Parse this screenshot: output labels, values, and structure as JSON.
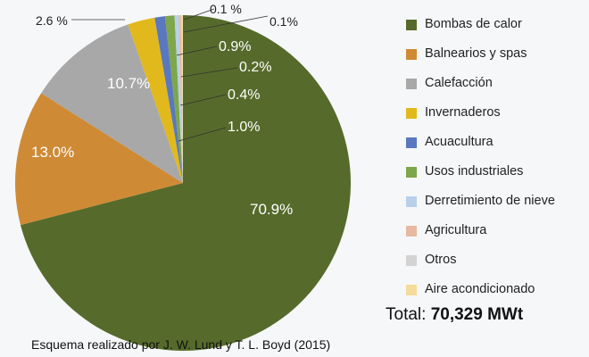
{
  "chart_data": {
    "type": "pie",
    "slices": [
      {
        "label": "Bombas de calor",
        "value": 70.9,
        "display": "70.9%",
        "color": "#566b2b"
      },
      {
        "label": "Balnearios y spas",
        "value": 13.0,
        "display": "13.0%",
        "color": "#cf8a35"
      },
      {
        "label": "Calefacción",
        "value": 10.7,
        "display": "10.7%",
        "color": "#a8a8a8"
      },
      {
        "label": "Invernaderos",
        "value": 2.6,
        "display": "2.6 %",
        "color": "#e2b91c"
      },
      {
        "label": "Acuacultura",
        "value": 1.0,
        "display": "1.0%",
        "color": "#5a78bf"
      },
      {
        "label": "Usos industriales",
        "value": 0.9,
        "display": "0.9%",
        "color": "#7ea64a"
      },
      {
        "label": "Derretimiento de nieve",
        "value": 0.4,
        "display": "0.4%",
        "color": "#b8d0ea"
      },
      {
        "label": "Agricultura",
        "value": 0.2,
        "display": "0.2%",
        "color": "#e6b9a0"
      },
      {
        "label": "Otros",
        "value": 0.1,
        "display": "0.1 %",
        "color": "#d3d3d3"
      },
      {
        "label": "Aire acondicionado",
        "value": 0.1,
        "display": "0.1%",
        "color": "#f5dc9a"
      }
    ],
    "legend_position": "right"
  },
  "total_label": "Total:",
  "total_value": "70,329 MWt",
  "caption": "Esquema realizado por J. W. Lund y T. L. Boyd (2015)"
}
